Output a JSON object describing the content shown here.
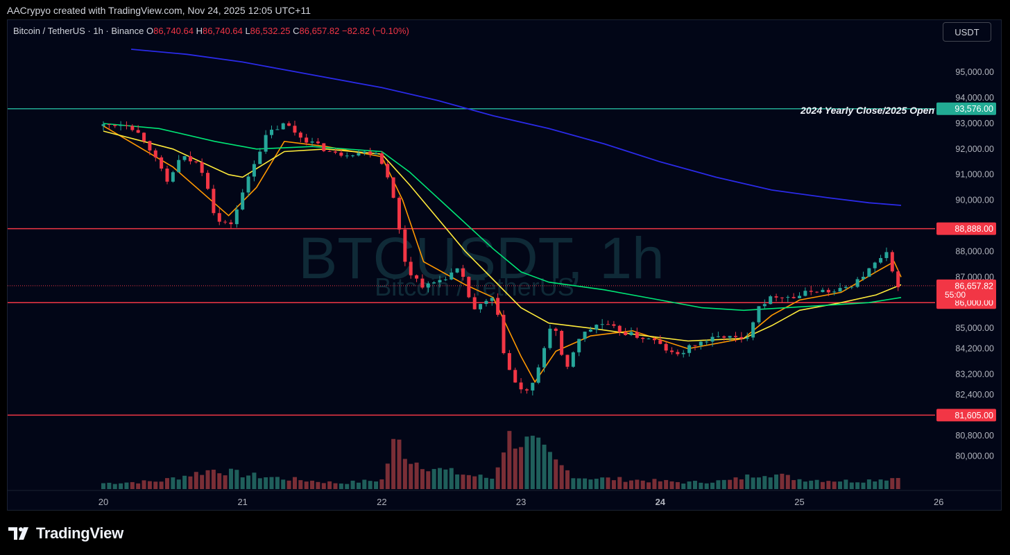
{
  "header": {
    "caption": "AACrypyo created with TradingView.com, Nov 24, 2025 12:05 UTC+11"
  },
  "symbol": {
    "title": "Bitcoin / TetherUS · 1h · Binance",
    "o_label": "O",
    "o_value": "86,740.64",
    "h_label": "H",
    "h_value": "86,740.64",
    "l_label": "L",
    "l_value": "86,532.25",
    "c_label": "C",
    "c_value": "86,657.82",
    "change": "−82.82 (−0.10%)"
  },
  "currency_button": "USDT",
  "watermark": {
    "main": "BTCUSDT, 1h",
    "sub": "Bitcoin / TetherUS"
  },
  "brand": {
    "name": "TradingView"
  },
  "colors": {
    "up": "#26a69a",
    "down": "#f23645",
    "level": "#f23645",
    "yearly": "#22ab94",
    "ma_fast": "#ff9800",
    "ma_mid": "#ffeb3b",
    "ma_slow": "#00e676",
    "ma_long": "#2a2ae8"
  },
  "chart_data": {
    "type": "candlestick",
    "y_axis": {
      "ticks": [
        95000,
        94000,
        93000,
        92000,
        91000,
        90000,
        88000,
        87000,
        85000,
        84200,
        83200,
        82400,
        80800,
        80000
      ],
      "tick_labels": [
        "95,000.00",
        "94,000.00",
        "93,000.00",
        "92,000.00",
        "91,000.00",
        "90,000.00",
        "88,000.00",
        "87,000.00",
        "85,000.00",
        "84,200.00",
        "83,200.00",
        "82,400.00",
        "80,800.00",
        "80,000.00"
      ]
    },
    "x_axis": {
      "ticks": [
        "20",
        "21",
        "22",
        "23",
        "24",
        "25",
        "26"
      ]
    },
    "horizontal_levels": [
      {
        "value": 93576,
        "label": "93,576.00",
        "kind": "yearly"
      },
      {
        "value": 88888,
        "label": "88,888.00",
        "kind": "level"
      },
      {
        "value": 86000,
        "label": "86,000.00",
        "kind": "level"
      },
      {
        "value": 81605,
        "label": "81,605.00",
        "kind": "level"
      }
    ],
    "annotation": "2024 Yearly Close/2025 Open",
    "last_price": {
      "value": 86657.82,
      "label": "86,657.82",
      "countdown": "55:00"
    },
    "close_path": [
      {
        "t": 0,
        "v": 92900
      },
      {
        "t": 0.22,
        "v": 93000
      },
      {
        "t": 0.35,
        "v": 92300
      },
      {
        "t": 0.5,
        "v": 90700
      },
      {
        "t": 0.6,
        "v": 91700
      },
      {
        "t": 0.73,
        "v": 91400
      },
      {
        "t": 0.78,
        "v": 90800
      },
      {
        "t": 0.85,
        "v": 89200
      },
      {
        "t": 0.95,
        "v": 89000
      },
      {
        "t": 1.02,
        "v": 89900
      },
      {
        "t": 1.1,
        "v": 91200
      },
      {
        "t": 1.22,
        "v": 92600
      },
      {
        "t": 1.35,
        "v": 93000
      },
      {
        "t": 1.45,
        "v": 92500
      },
      {
        "t": 1.7,
        "v": 91800
      },
      {
        "t": 2.0,
        "v": 91900
      },
      {
        "t": 2.1,
        "v": 90800
      },
      {
        "t": 2.15,
        "v": 89300
      },
      {
        "t": 2.22,
        "v": 87300
      },
      {
        "t": 2.35,
        "v": 86600
      },
      {
        "t": 2.5,
        "v": 87000
      },
      {
        "t": 2.6,
        "v": 87300
      },
      {
        "t": 2.7,
        "v": 85700
      },
      {
        "t": 2.85,
        "v": 86200
      },
      {
        "t": 2.92,
        "v": 84000
      },
      {
        "t": 2.98,
        "v": 83000
      },
      {
        "t": 3.05,
        "v": 82500
      },
      {
        "t": 3.12,
        "v": 82700
      },
      {
        "t": 3.18,
        "v": 83600
      },
      {
        "t": 3.22,
        "v": 84500
      },
      {
        "t": 3.27,
        "v": 85400
      },
      {
        "t": 3.36,
        "v": 83200
      },
      {
        "t": 3.45,
        "v": 84600
      },
      {
        "t": 3.6,
        "v": 85200
      },
      {
        "t": 3.8,
        "v": 84800
      },
      {
        "t": 4.0,
        "v": 84500
      },
      {
        "t": 4.15,
        "v": 83900
      },
      {
        "t": 4.3,
        "v": 84400
      },
      {
        "t": 4.5,
        "v": 84700
      },
      {
        "t": 4.65,
        "v": 84500
      },
      {
        "t": 4.75,
        "v": 85900
      },
      {
        "t": 4.88,
        "v": 86300
      },
      {
        "t": 5.0,
        "v": 86200
      },
      {
        "t": 5.15,
        "v": 86500
      },
      {
        "t": 5.3,
        "v": 86400
      },
      {
        "t": 5.45,
        "v": 86800
      },
      {
        "t": 5.6,
        "v": 87600
      },
      {
        "t": 5.67,
        "v": 87900
      },
      {
        "t": 5.73,
        "v": 86700
      }
    ],
    "series": [
      {
        "name": "",
        "line": "ma_fast",
        "points": [
          [
            0,
            92900
          ],
          [
            0.5,
            91300
          ],
          [
            0.9,
            89400
          ],
          [
            1.1,
            90500
          ],
          [
            1.3,
            92300
          ],
          [
            1.6,
            92100
          ],
          [
            2.0,
            91700
          ],
          [
            2.15,
            90000
          ],
          [
            2.3,
            87600
          ],
          [
            2.6,
            86700
          ],
          [
            2.8,
            86200
          ],
          [
            3.0,
            83900
          ],
          [
            3.1,
            82900
          ],
          [
            3.25,
            84100
          ],
          [
            3.5,
            84700
          ],
          [
            3.8,
            84900
          ],
          [
            4.2,
            84200
          ],
          [
            4.6,
            84600
          ],
          [
            4.8,
            85500
          ],
          [
            5.0,
            86100
          ],
          [
            5.3,
            86400
          ],
          [
            5.55,
            87200
          ],
          [
            5.68,
            87600
          ],
          [
            5.73,
            87000
          ]
        ]
      },
      {
        "name": "",
        "line": "ma_mid",
        "points": [
          [
            0,
            92700
          ],
          [
            0.5,
            92000
          ],
          [
            0.9,
            91000
          ],
          [
            1.0,
            90900
          ],
          [
            1.3,
            91900
          ],
          [
            1.6,
            92000
          ],
          [
            2.0,
            91800
          ],
          [
            2.2,
            90600
          ],
          [
            2.4,
            89300
          ],
          [
            2.6,
            88000
          ],
          [
            2.8,
            86900
          ],
          [
            3.0,
            85800
          ],
          [
            3.2,
            85200
          ],
          [
            3.5,
            85000
          ],
          [
            3.9,
            84700
          ],
          [
            4.2,
            84500
          ],
          [
            4.6,
            84600
          ],
          [
            4.8,
            85100
          ],
          [
            5.0,
            85700
          ],
          [
            5.3,
            86000
          ],
          [
            5.55,
            86300
          ],
          [
            5.73,
            86700
          ]
        ]
      },
      {
        "name": "",
        "line": "ma_slow",
        "points": [
          [
            0,
            93000
          ],
          [
            0.4,
            92800
          ],
          [
            0.8,
            92300
          ],
          [
            1.1,
            92000
          ],
          [
            1.5,
            92100
          ],
          [
            2.0,
            91900
          ],
          [
            2.2,
            91100
          ],
          [
            2.5,
            89600
          ],
          [
            2.8,
            88100
          ],
          [
            3.0,
            87200
          ],
          [
            3.2,
            86800
          ],
          [
            3.6,
            86500
          ],
          [
            4.0,
            86100
          ],
          [
            4.3,
            85800
          ],
          [
            4.6,
            85700
          ],
          [
            4.9,
            85800
          ],
          [
            5.2,
            85900
          ],
          [
            5.5,
            86000
          ],
          [
            5.73,
            86200
          ]
        ]
      },
      {
        "name": "",
        "line": "ma_long",
        "points": [
          [
            0.2,
            95900
          ],
          [
            0.6,
            95700
          ],
          [
            1.0,
            95400
          ],
          [
            1.5,
            94900
          ],
          [
            2.0,
            94400
          ],
          [
            2.4,
            93900
          ],
          [
            2.8,
            93300
          ],
          [
            3.2,
            92800
          ],
          [
            3.6,
            92200
          ],
          [
            4.0,
            91500
          ],
          [
            4.4,
            90900
          ],
          [
            4.8,
            90400
          ],
          [
            5.2,
            90100
          ],
          [
            5.5,
            89900
          ],
          [
            5.73,
            89800
          ]
        ]
      }
    ],
    "volume_pattern": [
      {
        "t": 0,
        "v": 0.09
      },
      {
        "t": 0.4,
        "v": 0.12
      },
      {
        "t": 0.8,
        "v": 0.3
      },
      {
        "t": 1.0,
        "v": 0.22
      },
      {
        "t": 1.3,
        "v": 0.16
      },
      {
        "t": 1.7,
        "v": 0.09
      },
      {
        "t": 2.0,
        "v": 0.14
      },
      {
        "t": 2.1,
        "v": 0.78
      },
      {
        "t": 2.2,
        "v": 0.45
      },
      {
        "t": 2.4,
        "v": 0.3
      },
      {
        "t": 2.6,
        "v": 0.22
      },
      {
        "t": 2.8,
        "v": 0.16
      },
      {
        "t": 2.9,
        "v": 0.8
      },
      {
        "t": 3.0,
        "v": 0.72
      },
      {
        "t": 3.1,
        "v": 0.68
      },
      {
        "t": 3.25,
        "v": 0.4
      },
      {
        "t": 3.4,
        "v": 0.18
      },
      {
        "t": 3.8,
        "v": 0.14
      },
      {
        "t": 4.2,
        "v": 0.1
      },
      {
        "t": 4.5,
        "v": 0.13
      },
      {
        "t": 4.75,
        "v": 0.25
      },
      {
        "t": 5.0,
        "v": 0.15
      },
      {
        "t": 5.4,
        "v": 0.12
      },
      {
        "t": 5.73,
        "v": 0.18
      }
    ]
  }
}
